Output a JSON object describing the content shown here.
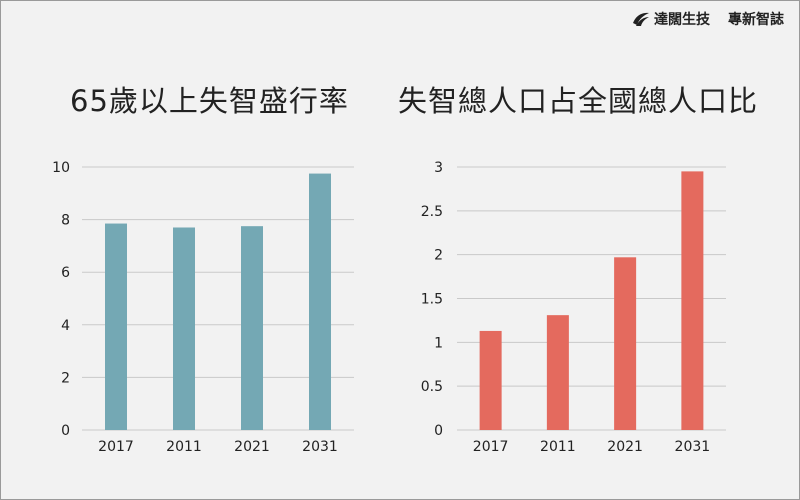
{
  "brand": {
    "company": "達闊生技",
    "publication": "專新智誌",
    "logo_icon": "swoosh-logo-icon"
  },
  "chart_data": [
    {
      "type": "bar",
      "title": "65歲以上失智盛行率",
      "categories": [
        "2017",
        "2011",
        "2021",
        "2031"
      ],
      "values": [
        7.85,
        7.7,
        7.75,
        9.75
      ],
      "ylim": [
        0,
        10
      ],
      "yticks": [
        "0",
        "2",
        "4",
        "6",
        "8",
        "10"
      ],
      "color": "#74a8b4",
      "grid": true
    },
    {
      "type": "bar",
      "title": "失智總人口占全國總人口比",
      "categories": [
        "2017",
        "2011",
        "2021",
        "2031"
      ],
      "values": [
        1.13,
        1.31,
        1.97,
        2.95
      ],
      "ylim": [
        0,
        3
      ],
      "yticks": [
        "0",
        "0.5",
        "1",
        "1.5",
        "2",
        "2.5",
        "3"
      ],
      "color": "#e46a5e",
      "grid": true
    }
  ]
}
